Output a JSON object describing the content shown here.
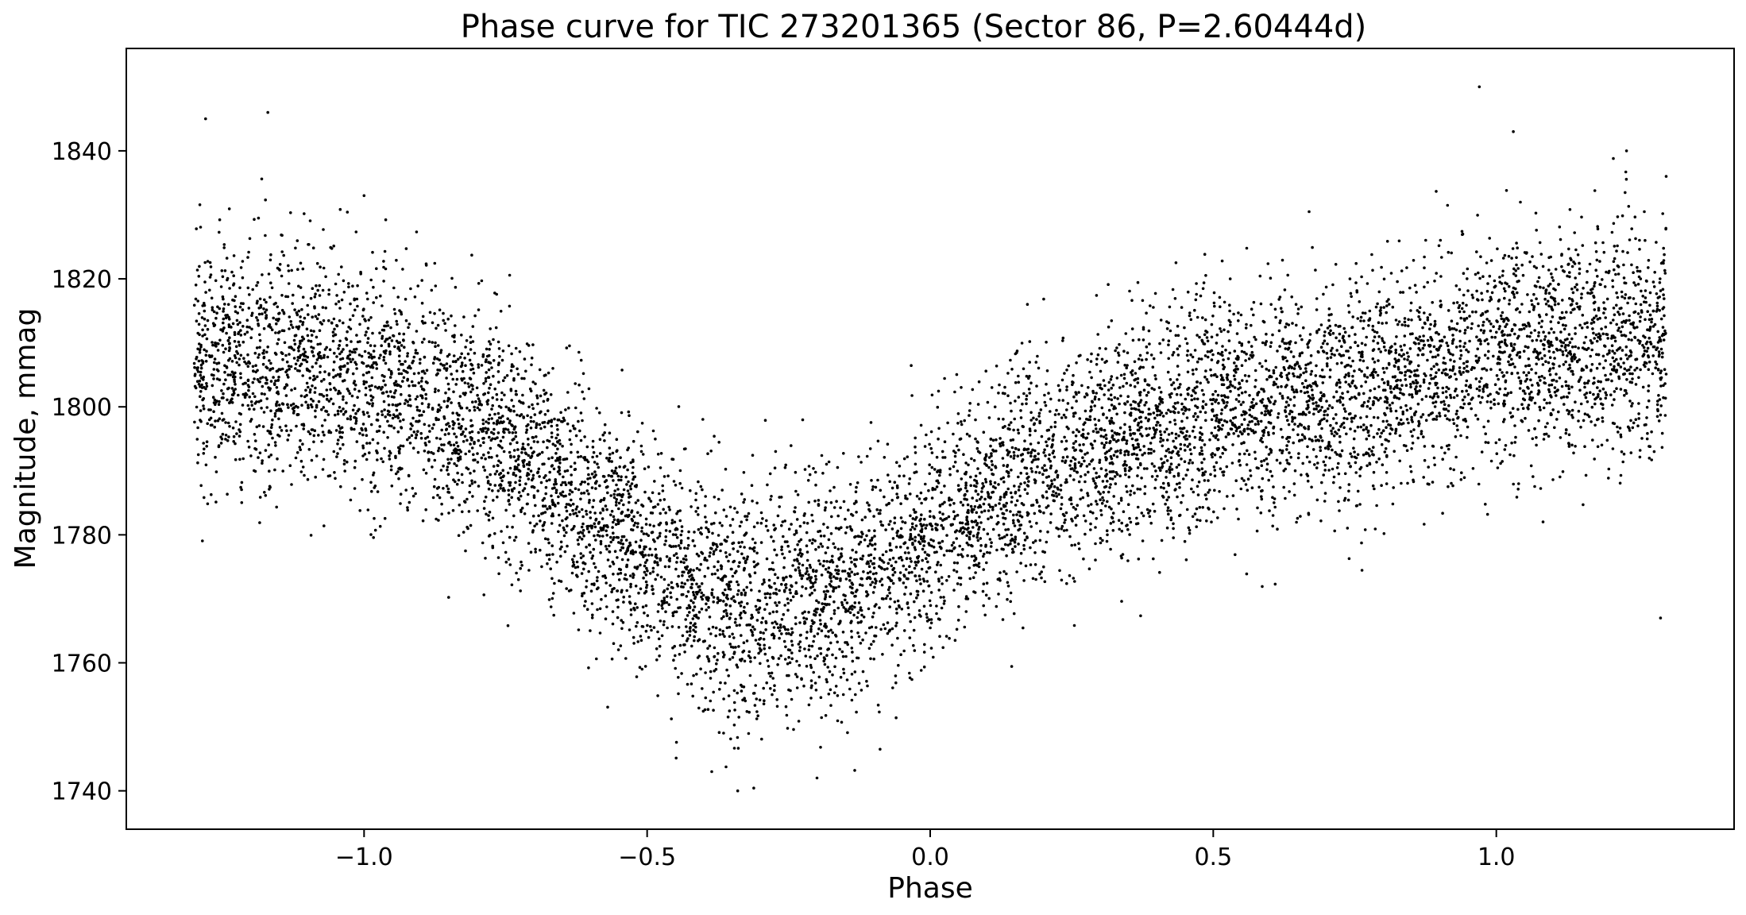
{
  "chart_data": {
    "type": "scatter",
    "title": "Phase curve for TIC 273201365 (Sector 86, P=2.60444d)",
    "xlabel": "Phase",
    "ylabel": "Magnitude, mmag",
    "xlim": [
      -1.42,
      1.42
    ],
    "ylim": [
      1734,
      1856
    ],
    "grid": false,
    "legend": "none",
    "marker_color": "#000000",
    "x_ticks": [
      {
        "value": -1.0,
        "label": "−1.0"
      },
      {
        "value": -0.5,
        "label": "−0.5"
      },
      {
        "value": 0.0,
        "label": "0.0"
      },
      {
        "value": 0.5,
        "label": "0.5"
      },
      {
        "value": 1.0,
        "label": "1.0"
      }
    ],
    "y_ticks": [
      {
        "value": 1740,
        "label": "1740"
      },
      {
        "value": 1760,
        "label": "1760"
      },
      {
        "value": 1780,
        "label": "1780"
      },
      {
        "value": 1800,
        "label": "1800"
      },
      {
        "value": 1820,
        "label": "1820"
      },
      {
        "value": 1840,
        "label": "1840"
      }
    ],
    "series": [
      {
        "x_range": [
          -1.3,
          1.3
        ],
        "point_count": 9000,
        "trend": {
          "x": [
            -1.3,
            -1.2,
            -1.1,
            -1.0,
            -0.9,
            -0.8,
            -0.7,
            -0.6,
            -0.5,
            -0.4,
            -0.3,
            -0.2,
            -0.1,
            0.0,
            0.1,
            0.2,
            0.3,
            0.4,
            0.5,
            0.6,
            0.7,
            0.8,
            0.9,
            1.0,
            1.1,
            1.2,
            1.3
          ],
          "y": [
            1808,
            1807,
            1806,
            1805,
            1801,
            1797,
            1791,
            1784,
            1777,
            1771,
            1769,
            1770,
            1773,
            1780,
            1786,
            1791,
            1794,
            1797,
            1799,
            1801,
            1802,
            1804,
            1806,
            1808,
            1809,
            1810,
            1810
          ]
        },
        "scatter_sd": 9,
        "outliers": [
          {
            "x": -1.28,
            "y": 1845
          },
          {
            "x": -1.17,
            "y": 1846
          },
          {
            "x": -1.0,
            "y": 1833
          },
          {
            "x": -0.34,
            "y": 1740
          },
          {
            "x": -0.2,
            "y": 1742
          },
          {
            "x": 0.97,
            "y": 1850
          },
          {
            "x": 1.03,
            "y": 1843
          },
          {
            "x": 1.23,
            "y": 1840
          },
          {
            "x": 1.29,
            "y": 1767
          },
          {
            "x": 1.3,
            "y": 1836
          }
        ]
      }
    ]
  }
}
